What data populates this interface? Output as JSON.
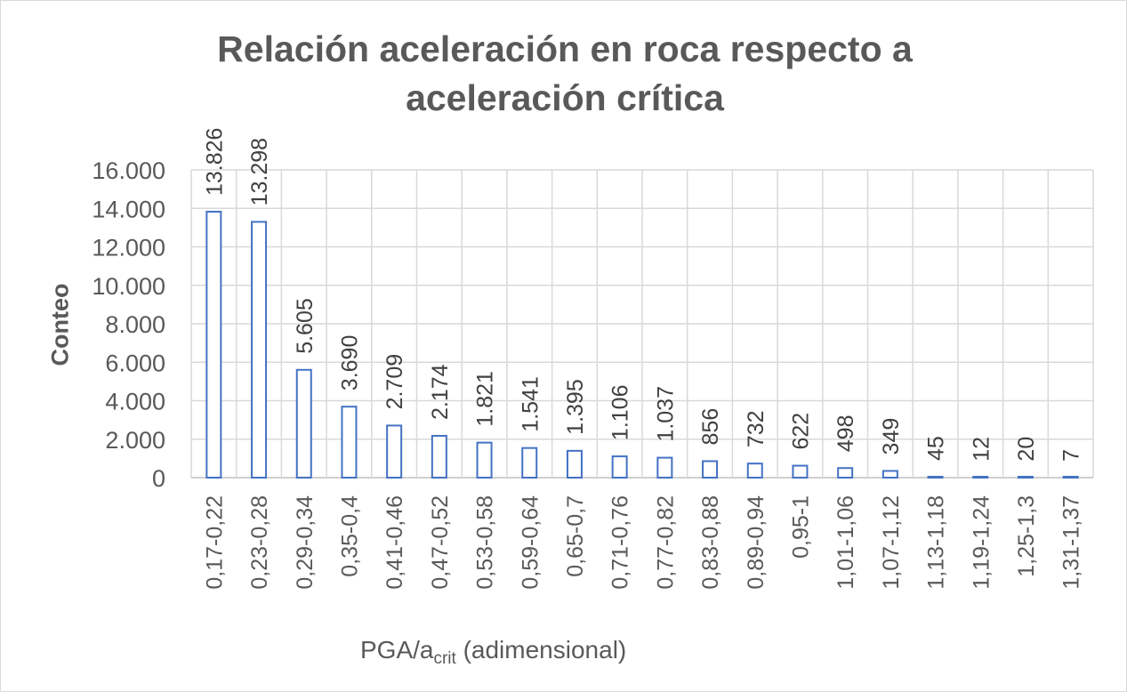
{
  "chart_data": {
    "type": "bar",
    "title": "Relación aceleración en roca respecto a aceleración crítica",
    "xlabel_main": "PGA/a",
    "xlabel_sub": "crit",
    "xlabel_rest": " (adimensional)",
    "ylabel": "Conteo",
    "ylim": [
      0,
      16000
    ],
    "ytick_values": [
      0,
      2000,
      4000,
      6000,
      8000,
      10000,
      12000,
      14000,
      16000
    ],
    "ytick_labels": [
      "0",
      "2.000",
      "4.000",
      "6.000",
      "8.000",
      "10.000",
      "12.000",
      "14.000",
      "16.000"
    ],
    "grid": true,
    "categories": [
      "0,17-0,22",
      "0,23-0,28",
      "0,29-0,34",
      "0,35-0,4",
      "0,41-0,46",
      "0,47-0,52",
      "0,53-0,58",
      "0,59-0,64",
      "0,65-0,7",
      "0,71-0,76",
      "0,77-0,82",
      "0,83-0,88",
      "0,89-0,94",
      "0,95-1",
      "1,01-1,06",
      "1,07-1,12",
      "1,13-1,18",
      "1,19-1,24",
      "1,25-1,3",
      "1,31-1,37"
    ],
    "values": [
      13826,
      13298,
      5605,
      3690,
      2709,
      2174,
      1821,
      1541,
      1395,
      1106,
      1037,
      856,
      732,
      622,
      498,
      349,
      45,
      12,
      20,
      7
    ],
    "value_labels": [
      "13.826",
      "13.298",
      "5.605",
      "3.690",
      "2.709",
      "2.174",
      "1.821",
      "1.541",
      "1.395",
      "1.106",
      "1.037",
      "856",
      "732",
      "622",
      "498",
      "349",
      "45",
      "12",
      "20",
      "7"
    ],
    "bar_color": "#4472c4",
    "grid_color": "#d9d9d9",
    "text_color": "#595959"
  }
}
